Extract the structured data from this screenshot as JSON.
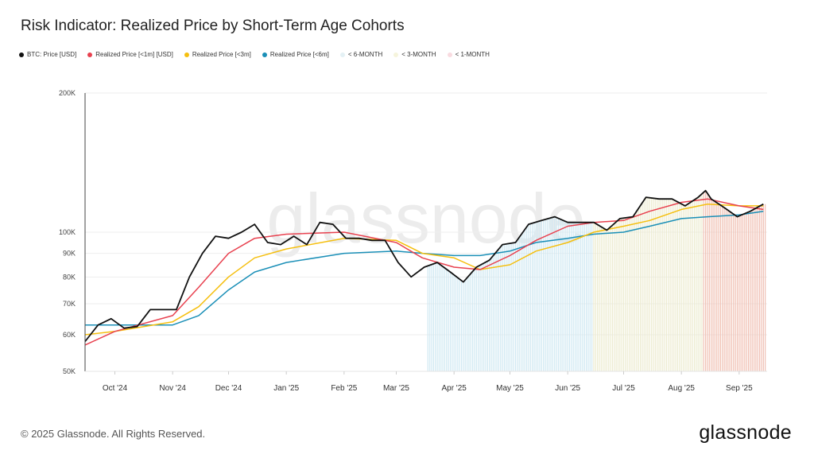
{
  "title": "Risk Indicator: Realized Price by Short-Term Age Cohorts",
  "footer": {
    "copyright": "© 2025 Glassnode. All Rights Reserved.",
    "logo": "glassnode",
    "watermark": "glassnode"
  },
  "legend": [
    {
      "label": "BTC: Price [USD]",
      "color": "#111111"
    },
    {
      "label": "Realized Price [<1m] [USD]",
      "color": "#e8414f"
    },
    {
      "label": "Realized Price [<3m]",
      "color": "#f5bf0f"
    },
    {
      "label": "Realized Price [<6m]",
      "color": "#1a8fb7"
    },
    {
      "label": "< 6-MONTH",
      "color": "#d9eef5"
    },
    {
      "label": "< 3-MONTH",
      "color": "#f3f1d8"
    },
    {
      "label": "< 1-MONTH",
      "color": "#f5cfc6"
    }
  ],
  "chart_data": {
    "type": "line",
    "title": "Risk Indicator: Realized Price by Short-Term Age Cohorts",
    "y_scale": "log",
    "ylim": [
      50000,
      200000
    ],
    "y_ticks": [
      {
        "v": 200000,
        "label": "200K"
      },
      {
        "v": 100000,
        "label": "100K"
      },
      {
        "v": 90000,
        "label": "90K"
      },
      {
        "v": 80000,
        "label": "80K"
      },
      {
        "v": 70000,
        "label": "70K"
      },
      {
        "v": 60000,
        "label": "60K"
      },
      {
        "v": 50000,
        "label": "50K"
      }
    ],
    "xlim": [
      "2024-09-15",
      "2025-09-16"
    ],
    "x_ticks": [
      {
        "d": "2024-10-01",
        "label": "Oct '24"
      },
      {
        "d": "2024-11-01",
        "label": "Nov '24"
      },
      {
        "d": "2024-12-01",
        "label": "Dec '24"
      },
      {
        "d": "2025-01-01",
        "label": "Jan '25"
      },
      {
        "d": "2025-02-01",
        "label": "Feb '25"
      },
      {
        "d": "2025-03-01",
        "label": "Mar '25"
      },
      {
        "d": "2025-04-01",
        "label": "Apr '25"
      },
      {
        "d": "2025-05-01",
        "label": "May '25"
      },
      {
        "d": "2025-06-01",
        "label": "Jun '25"
      },
      {
        "d": "2025-07-01",
        "label": "Jul '25"
      },
      {
        "d": "2025-08-01",
        "label": "Aug '25"
      },
      {
        "d": "2025-09-01",
        "label": "Sep '25"
      }
    ],
    "grid": true,
    "legend_position": "top-left",
    "series": [
      {
        "name": "BTC: Price [USD]",
        "color": "#111111",
        "points": [
          [
            "2024-09-15",
            58000
          ],
          [
            "2024-09-22",
            63000
          ],
          [
            "2024-09-29",
            65000
          ],
          [
            "2024-10-06",
            62000
          ],
          [
            "2024-10-13",
            62500
          ],
          [
            "2024-10-20",
            68000
          ],
          [
            "2024-10-27",
            68000
          ],
          [
            "2024-11-03",
            68000
          ],
          [
            "2024-11-10",
            80000
          ],
          [
            "2024-11-17",
            90000
          ],
          [
            "2024-11-24",
            98000
          ],
          [
            "2024-12-01",
            97000
          ],
          [
            "2024-12-08",
            100000
          ],
          [
            "2024-12-15",
            104000
          ],
          [
            "2024-12-22",
            95000
          ],
          [
            "2024-12-29",
            94000
          ],
          [
            "2025-01-05",
            98000
          ],
          [
            "2025-01-12",
            94000
          ],
          [
            "2025-01-19",
            105000
          ],
          [
            "2025-01-26",
            104000
          ],
          [
            "2025-02-02",
            97000
          ],
          [
            "2025-02-09",
            97000
          ],
          [
            "2025-02-16",
            96000
          ],
          [
            "2025-02-23",
            96000
          ],
          [
            "2025-03-02",
            86000
          ],
          [
            "2025-03-09",
            80000
          ],
          [
            "2025-03-16",
            84000
          ],
          [
            "2025-03-23",
            86000
          ],
          [
            "2025-03-30",
            82000
          ],
          [
            "2025-04-06",
            78000
          ],
          [
            "2025-04-13",
            84000
          ],
          [
            "2025-04-20",
            87000
          ],
          [
            "2025-04-27",
            94000
          ],
          [
            "2025-05-04",
            95000
          ],
          [
            "2025-05-11",
            104000
          ],
          [
            "2025-05-18",
            106000
          ],
          [
            "2025-05-25",
            108000
          ],
          [
            "2025-06-01",
            105000
          ],
          [
            "2025-06-08",
            105000
          ],
          [
            "2025-06-15",
            105000
          ],
          [
            "2025-06-22",
            101000
          ],
          [
            "2025-06-29",
            107000
          ],
          [
            "2025-07-06",
            108000
          ],
          [
            "2025-07-13",
            119000
          ],
          [
            "2025-07-20",
            118000
          ],
          [
            "2025-07-27",
            118000
          ],
          [
            "2025-08-03",
            114000
          ],
          [
            "2025-08-10",
            119000
          ],
          [
            "2025-08-14",
            123000
          ],
          [
            "2025-08-17",
            118000
          ],
          [
            "2025-08-24",
            113000
          ],
          [
            "2025-08-31",
            108000
          ],
          [
            "2025-09-07",
            111000
          ],
          [
            "2025-09-14",
            115000
          ]
        ]
      },
      {
        "name": "Realized Price [<1m] [USD]",
        "color": "#e8414f",
        "points": [
          [
            "2024-09-15",
            57000
          ],
          [
            "2024-10-01",
            61000
          ],
          [
            "2024-11-01",
            66000
          ],
          [
            "2024-11-15",
            76000
          ],
          [
            "2024-12-01",
            90000
          ],
          [
            "2024-12-15",
            97000
          ],
          [
            "2025-01-01",
            99000
          ],
          [
            "2025-02-01",
            100000
          ],
          [
            "2025-03-01",
            95000
          ],
          [
            "2025-03-15",
            88000
          ],
          [
            "2025-04-01",
            84000
          ],
          [
            "2025-04-15",
            83000
          ],
          [
            "2025-05-01",
            89000
          ],
          [
            "2025-05-15",
            96000
          ],
          [
            "2025-06-01",
            103000
          ],
          [
            "2025-06-15",
            105000
          ],
          [
            "2025-07-01",
            106000
          ],
          [
            "2025-07-15",
            111000
          ],
          [
            "2025-08-01",
            116000
          ],
          [
            "2025-08-15",
            118000
          ],
          [
            "2025-09-01",
            114000
          ],
          [
            "2025-09-14",
            112000
          ]
        ]
      },
      {
        "name": "Realized Price [<3m]",
        "color": "#f5bf0f",
        "points": [
          [
            "2024-09-15",
            60000
          ],
          [
            "2024-10-01",
            61000
          ],
          [
            "2024-11-01",
            64000
          ],
          [
            "2024-11-15",
            69000
          ],
          [
            "2024-12-01",
            80000
          ],
          [
            "2024-12-15",
            88000
          ],
          [
            "2025-01-01",
            92000
          ],
          [
            "2025-02-01",
            97000
          ],
          [
            "2025-03-01",
            96000
          ],
          [
            "2025-03-15",
            90000
          ],
          [
            "2025-04-01",
            88000
          ],
          [
            "2025-04-15",
            83000
          ],
          [
            "2025-05-01",
            85000
          ],
          [
            "2025-05-15",
            91000
          ],
          [
            "2025-06-01",
            95000
          ],
          [
            "2025-06-15",
            100000
          ],
          [
            "2025-07-01",
            103000
          ],
          [
            "2025-07-15",
            106000
          ],
          [
            "2025-08-01",
            112000
          ],
          [
            "2025-08-15",
            115000
          ],
          [
            "2025-09-01",
            114000
          ],
          [
            "2025-09-14",
            114000
          ]
        ]
      },
      {
        "name": "Realized Price [<6m]",
        "color": "#1a8fb7",
        "points": [
          [
            "2024-09-15",
            63000
          ],
          [
            "2024-10-01",
            63000
          ],
          [
            "2024-11-01",
            63000
          ],
          [
            "2024-11-15",
            66000
          ],
          [
            "2024-12-01",
            75000
          ],
          [
            "2024-12-15",
            82000
          ],
          [
            "2025-01-01",
            86000
          ],
          [
            "2025-02-01",
            90000
          ],
          [
            "2025-03-01",
            91000
          ],
          [
            "2025-03-15",
            90000
          ],
          [
            "2025-04-01",
            89000
          ],
          [
            "2025-04-15",
            89000
          ],
          [
            "2025-05-01",
            91000
          ],
          [
            "2025-05-15",
            95000
          ],
          [
            "2025-06-01",
            97000
          ],
          [
            "2025-06-15",
            99000
          ],
          [
            "2025-07-01",
            100000
          ],
          [
            "2025-07-15",
            103000
          ],
          [
            "2025-08-01",
            107000
          ],
          [
            "2025-08-15",
            108000
          ],
          [
            "2025-09-01",
            109000
          ],
          [
            "2025-09-14",
            111000
          ]
        ]
      }
    ],
    "regions": [
      {
        "name": "< 6-MONTH",
        "start": "2025-03-18",
        "end": "2025-06-15",
        "color": "#cfe8f2"
      },
      {
        "name": "< 3-MONTH",
        "start": "2025-06-15",
        "end": "2025-08-13",
        "color": "#ecebcf"
      },
      {
        "name": "< 1-MONTH",
        "start": "2025-08-13",
        "end": "2025-09-16",
        "color": "#f0bfb2"
      }
    ]
  }
}
